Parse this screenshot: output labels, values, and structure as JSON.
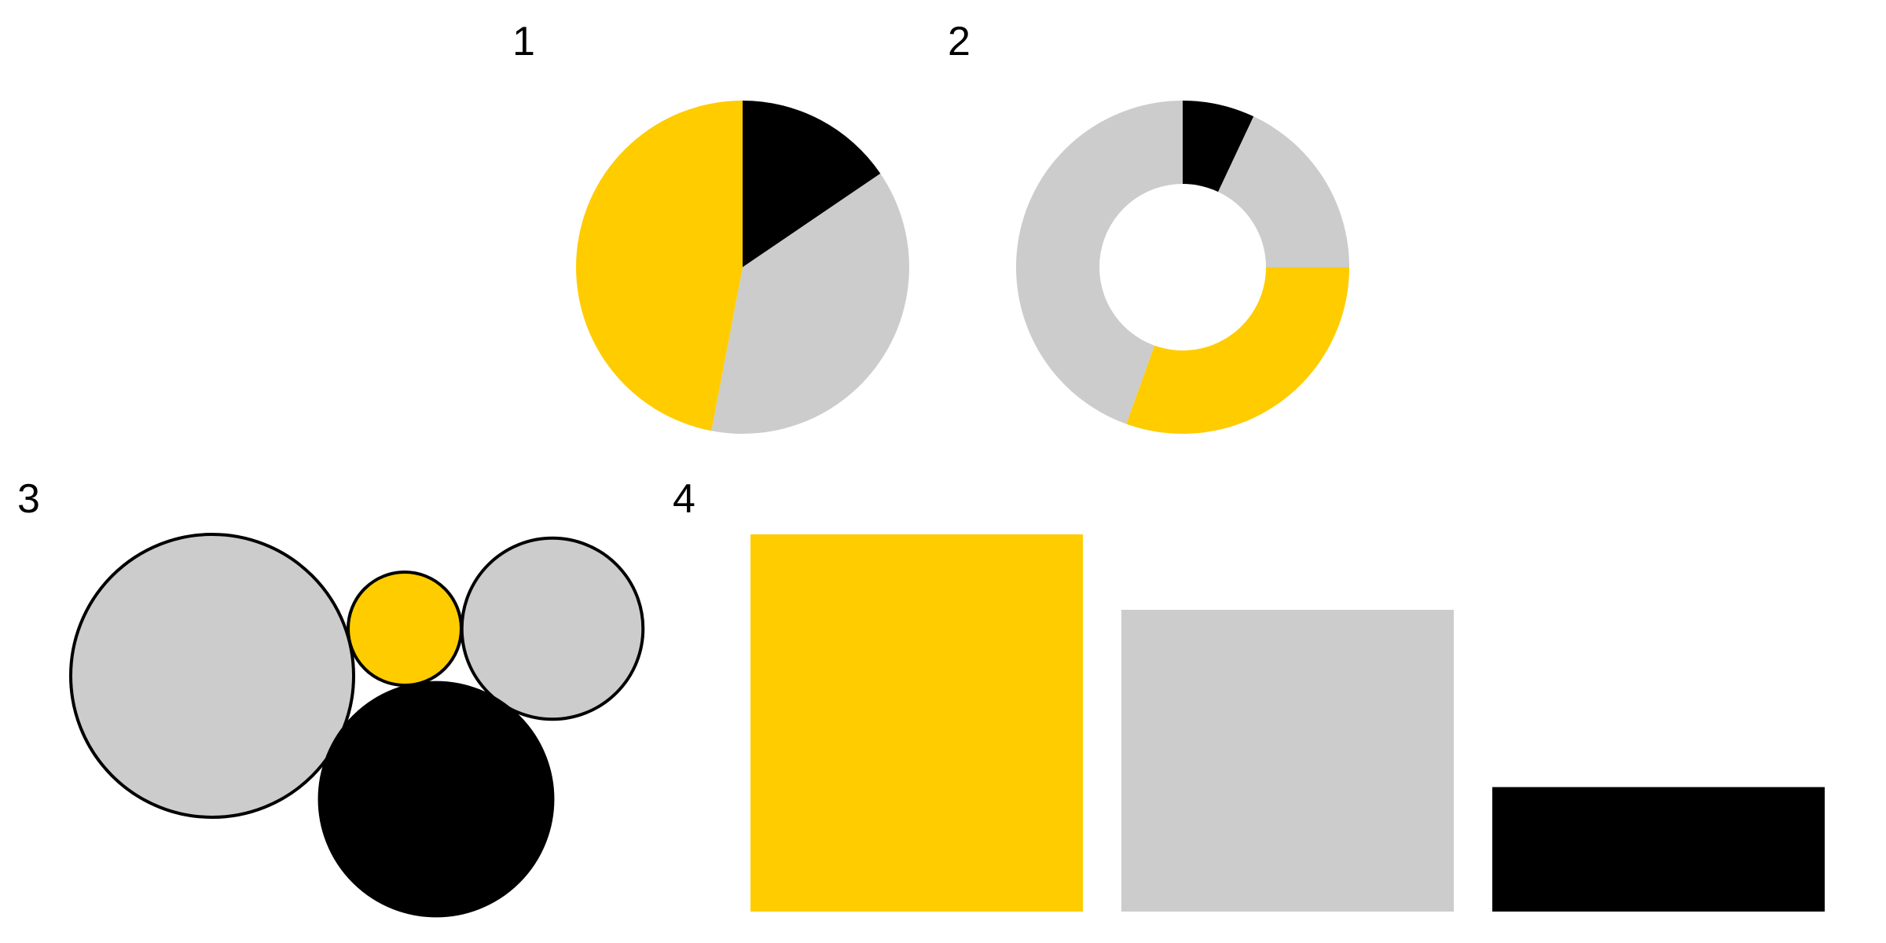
{
  "colors": {
    "yellow": "#FFCC00",
    "gray": "#CCCCCC",
    "black": "#000000",
    "background": "#FFFFFF"
  },
  "chart_data": [
    {
      "type": "pie",
      "label": "1",
      "slices": [
        {
          "color": "black",
          "value": 15.5
        },
        {
          "color": "gray",
          "value": 37.5
        },
        {
          "color": "yellow",
          "value": 47.0
        }
      ]
    },
    {
      "type": "donut",
      "label": "2",
      "slices": [
        {
          "color": "black",
          "value": 7.0
        },
        {
          "color": "gray",
          "value": 18.0
        },
        {
          "color": "yellow",
          "value": 30.5
        },
        {
          "color": "gray",
          "value": 44.5
        }
      ]
    },
    {
      "type": "bubble",
      "label": "3",
      "bubbles": [
        {
          "color": "gray",
          "value": 100
        },
        {
          "color": "yellow",
          "value": 16
        },
        {
          "color": "gray",
          "value": 41
        },
        {
          "color": "black",
          "value": 68
        }
      ]
    },
    {
      "type": "bar",
      "label": "4",
      "bars": [
        {
          "color": "yellow",
          "value": 100
        },
        {
          "color": "gray",
          "value": 80
        },
        {
          "color": "black",
          "value": 33
        }
      ]
    }
  ]
}
